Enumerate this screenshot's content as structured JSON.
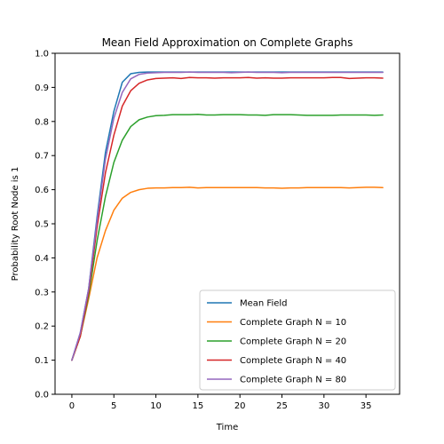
{
  "chart_data": {
    "type": "line",
    "title": "Mean Field Approximation on Complete Graphs",
    "xlabel": "Time",
    "ylabel": "Probability Root Node is 1",
    "xlim": [
      -2,
      39
    ],
    "ylim": [
      0.0,
      1.0
    ],
    "xticks": [
      0,
      5,
      10,
      15,
      20,
      25,
      30,
      35
    ],
    "yticks": [
      0.0,
      0.1,
      0.2,
      0.3,
      0.4,
      0.5,
      0.6,
      0.7,
      0.8,
      0.9,
      1.0
    ],
    "legend_position": "bottom-right",
    "x": [
      0,
      1,
      2,
      3,
      4,
      5,
      6,
      7,
      8,
      9,
      10,
      11,
      12,
      13,
      14,
      15,
      16,
      17,
      18,
      19,
      20,
      21,
      22,
      23,
      24,
      25,
      26,
      27,
      28,
      29,
      30,
      31,
      32,
      33,
      34,
      35,
      36,
      37
    ],
    "series": [
      {
        "name": "Mean Field",
        "color": "#1f77b4",
        "values": [
          0.1,
          0.18,
          0.31,
          0.52,
          0.71,
          0.83,
          0.915,
          0.94,
          0.944,
          0.945,
          0.945,
          0.945,
          0.945,
          0.945,
          0.945,
          0.945,
          0.945,
          0.945,
          0.945,
          0.945,
          0.945,
          0.945,
          0.945,
          0.945,
          0.945,
          0.945,
          0.945,
          0.945,
          0.945,
          0.945,
          0.945,
          0.945,
          0.945,
          0.945,
          0.945,
          0.945,
          0.945,
          0.945
        ]
      },
      {
        "name": "Complete Graph N = 10",
        "color": "#ff7f0e",
        "values": [
          0.1,
          0.17,
          0.28,
          0.4,
          0.48,
          0.54,
          0.575,
          0.592,
          0.6,
          0.604,
          0.605,
          0.605,
          0.606,
          0.606,
          0.607,
          0.605,
          0.606,
          0.606,
          0.606,
          0.606,
          0.606,
          0.606,
          0.606,
          0.605,
          0.605,
          0.604,
          0.605,
          0.605,
          0.606,
          0.606,
          0.606,
          0.606,
          0.606,
          0.605,
          0.606,
          0.607,
          0.607,
          0.606
        ]
      },
      {
        "name": "Complete Graph N = 20",
        "color": "#2ca02c",
        "values": [
          0.1,
          0.17,
          0.29,
          0.45,
          0.58,
          0.68,
          0.745,
          0.785,
          0.805,
          0.813,
          0.817,
          0.818,
          0.82,
          0.82,
          0.82,
          0.821,
          0.819,
          0.819,
          0.82,
          0.82,
          0.82,
          0.819,
          0.819,
          0.818,
          0.82,
          0.82,
          0.82,
          0.819,
          0.818,
          0.818,
          0.818,
          0.818,
          0.819,
          0.819,
          0.819,
          0.819,
          0.818,
          0.819
        ]
      },
      {
        "name": "Complete Graph N = 40",
        "color": "#d62728",
        "values": [
          0.1,
          0.17,
          0.3,
          0.49,
          0.65,
          0.76,
          0.845,
          0.89,
          0.912,
          0.922,
          0.926,
          0.927,
          0.928,
          0.926,
          0.929,
          0.928,
          0.928,
          0.927,
          0.928,
          0.928,
          0.928,
          0.929,
          0.927,
          0.928,
          0.927,
          0.927,
          0.928,
          0.928,
          0.928,
          0.928,
          0.928,
          0.929,
          0.929,
          0.926,
          0.927,
          0.928,
          0.928,
          0.927
        ]
      },
      {
        "name": "Complete Graph N = 80",
        "color": "#9467bd",
        "values": [
          0.1,
          0.18,
          0.31,
          0.51,
          0.69,
          0.81,
          0.885,
          0.925,
          0.938,
          0.942,
          0.943,
          0.944,
          0.944,
          0.944,
          0.945,
          0.944,
          0.944,
          0.944,
          0.944,
          0.943,
          0.944,
          0.945,
          0.944,
          0.944,
          0.944,
          0.943,
          0.944,
          0.944,
          0.944,
          0.944,
          0.944,
          0.944,
          0.944,
          0.944,
          0.944,
          0.944,
          0.944,
          0.944
        ]
      }
    ]
  }
}
